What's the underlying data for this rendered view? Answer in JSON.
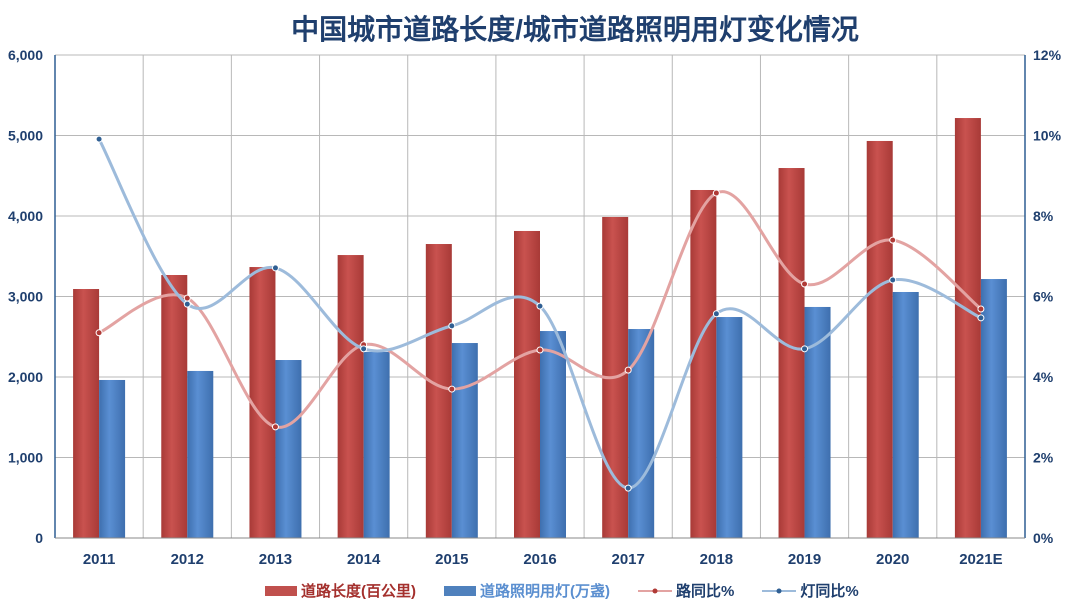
{
  "chart_data": {
    "type": "bar+line",
    "title": "中国城市道路长度/城市道路照明用灯变化情况",
    "categories": [
      "2011",
      "2012",
      "2013",
      "2014",
      "2015",
      "2016",
      "2017",
      "2018",
      "2019",
      "2020",
      "2021E"
    ],
    "y_left": {
      "range": [
        0,
        6000
      ],
      "ticks": [
        "0",
        "1,000",
        "2,000",
        "3,000",
        "4,000",
        "5,000",
        "6,000"
      ]
    },
    "y_right": {
      "range": [
        0,
        12
      ],
      "ticks": [
        "0%",
        "2%",
        "4%",
        "6%",
        "8%",
        "10%",
        "12%"
      ]
    },
    "grid": true,
    "legend_position": "bottom",
    "series": [
      {
        "name": "道路长度(百公里)",
        "type": "bar",
        "axis": "left",
        "color": "#c0504d",
        "values": [
          3093,
          3267,
          3366,
          3515,
          3652,
          3814,
          3988,
          4323,
          4596,
          4932,
          5217
        ]
      },
      {
        "name": "道路照明用灯(万盏)",
        "type": "bar",
        "axis": "left",
        "color": "#4f81bd",
        "values": [
          1963,
          2075,
          2211,
          2311,
          2422,
          2571,
          2596,
          2745,
          2870,
          3056,
          3217
        ]
      },
      {
        "name": "路同比%",
        "type": "line",
        "axis": "right",
        "color": "#e3a3a2",
        "values": [
          5.1,
          5.96,
          2.76,
          4.8,
          3.7,
          4.67,
          4.17,
          8.57,
          6.31,
          7.4,
          5.69
        ]
      },
      {
        "name": "灯同比%",
        "type": "line",
        "axis": "right",
        "color": "#9dbbdb",
        "values": [
          9.91,
          5.81,
          6.71,
          4.7,
          5.27,
          5.76,
          1.24,
          5.57,
          4.7,
          6.41,
          5.47
        ]
      }
    ]
  }
}
